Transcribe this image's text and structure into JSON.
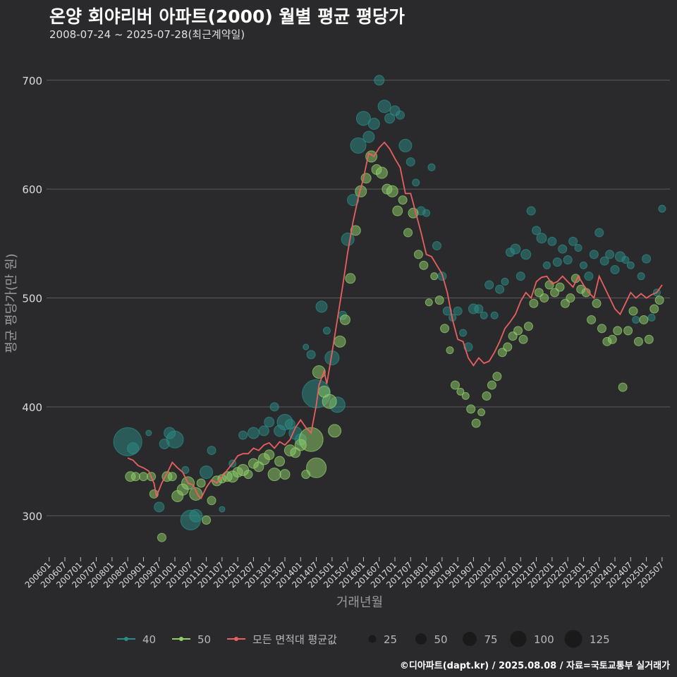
{
  "header": {
    "title": "온양 회야리버 아파트(2000) 월별 평균 평당가",
    "subtitle": "2008-07-24 ~ 2025-07-28(최근계약일)"
  },
  "footer": {
    "credit": "©디아파트(dapt.kr) / 2025.08.08 / 자료=국토교통부 실거래가"
  },
  "colors": {
    "s40": "#2a8c86",
    "s50": "#8fcf6a",
    "avg": "#e8605f",
    "grid": "#5a5a5c",
    "bg": "#2a2a2c"
  },
  "chart_data": {
    "type": "line+scatter",
    "xlabel": "거래년월",
    "ylabel": "평균 평당가(만 원)",
    "yticks": [
      300,
      400,
      500,
      600,
      700
    ],
    "ylim": [
      262,
      718
    ],
    "xlim": [
      "2005-12",
      "2025-10"
    ],
    "xticks": [
      "200601",
      "200607",
      "200701",
      "200707",
      "200801",
      "200807",
      "200901",
      "200907",
      "201001",
      "201007",
      "201101",
      "201107",
      "201201",
      "201207",
      "201301",
      "201307",
      "201401",
      "201407",
      "201501",
      "201507",
      "201601",
      "201607",
      "201701",
      "201707",
      "201801",
      "201807",
      "201901",
      "201907",
      "202001",
      "202007",
      "202101",
      "202107",
      "202201",
      "202207",
      "202301",
      "202307",
      "202401",
      "202407",
      "202501",
      "202507"
    ],
    "legend_series": [
      {
        "name": "40",
        "color": "#2a8c86"
      },
      {
        "name": "50",
        "color": "#8fcf6a"
      },
      {
        "name": "모든 면적대 평균값",
        "color": "#e8605f"
      }
    ],
    "legend_sizes": [
      25,
      50,
      75,
      100,
      125
    ],
    "average_line": [
      [
        "2008-07",
        353
      ],
      [
        "2008-09",
        351
      ],
      [
        "2008-11",
        346
      ],
      [
        "2009-01",
        344
      ],
      [
        "2009-03",
        341
      ],
      [
        "2009-05",
        330
      ],
      [
        "2009-06",
        318
      ],
      [
        "2009-08",
        330
      ],
      [
        "2009-10",
        339
      ],
      [
        "2009-12",
        349
      ],
      [
        "2010-02",
        344
      ],
      [
        "2010-04",
        340
      ],
      [
        "2010-06",
        330
      ],
      [
        "2010-08",
        328
      ],
      [
        "2010-10",
        318
      ],
      [
        "2010-11",
        316
      ],
      [
        "2011-01",
        326
      ],
      [
        "2011-03",
        333
      ],
      [
        "2011-05",
        330
      ],
      [
        "2011-07",
        336
      ],
      [
        "2011-09",
        342
      ],
      [
        "2011-11",
        348
      ],
      [
        "2012-01",
        355
      ],
      [
        "2012-03",
        357
      ],
      [
        "2012-05",
        357
      ],
      [
        "2012-07",
        362
      ],
      [
        "2012-09",
        360
      ],
      [
        "2012-11",
        365
      ],
      [
        "2013-01",
        367
      ],
      [
        "2013-03",
        362
      ],
      [
        "2013-05",
        368
      ],
      [
        "2013-07",
        365
      ],
      [
        "2013-09",
        370
      ],
      [
        "2013-11",
        381
      ],
      [
        "2014-01",
        388
      ],
      [
        "2014-03",
        381
      ],
      [
        "2014-05",
        376
      ],
      [
        "2014-07",
        402
      ],
      [
        "2014-08",
        420
      ],
      [
        "2014-10",
        433
      ],
      [
        "2014-11",
        421
      ],
      [
        "2015-01",
        450
      ],
      [
        "2015-03",
        480
      ],
      [
        "2015-05",
        510
      ],
      [
        "2015-07",
        542
      ],
      [
        "2015-09",
        570
      ],
      [
        "2015-11",
        592
      ],
      [
        "2016-01",
        610
      ],
      [
        "2016-03",
        633
      ],
      [
        "2016-05",
        630
      ],
      [
        "2016-07",
        638
      ],
      [
        "2016-09",
        643
      ],
      [
        "2016-11",
        637
      ],
      [
        "2017-01",
        628
      ],
      [
        "2017-03",
        620
      ],
      [
        "2017-05",
        596
      ],
      [
        "2017-07",
        596
      ],
      [
        "2017-09",
        578
      ],
      [
        "2017-11",
        560
      ],
      [
        "2018-01",
        540
      ],
      [
        "2018-03",
        538
      ],
      [
        "2018-05",
        530
      ],
      [
        "2018-07",
        522
      ],
      [
        "2018-09",
        505
      ],
      [
        "2018-11",
        480
      ],
      [
        "2019-01",
        462
      ],
      [
        "2019-03",
        460
      ],
      [
        "2019-05",
        445
      ],
      [
        "2019-07",
        438
      ],
      [
        "2019-09",
        445
      ],
      [
        "2019-11",
        440
      ],
      [
        "2020-01",
        442
      ],
      [
        "2020-03",
        450
      ],
      [
        "2020-05",
        460
      ],
      [
        "2020-07",
        472
      ],
      [
        "2020-09",
        478
      ],
      [
        "2020-11",
        485
      ],
      [
        "2021-01",
        497
      ],
      [
        "2021-03",
        505
      ],
      [
        "2021-05",
        500
      ],
      [
        "2021-07",
        515
      ],
      [
        "2021-09",
        519
      ],
      [
        "2021-11",
        520
      ],
      [
        "2022-01",
        513
      ],
      [
        "2022-03",
        515
      ],
      [
        "2022-05",
        520
      ],
      [
        "2022-07",
        515
      ],
      [
        "2022-09",
        510
      ],
      [
        "2022-11",
        520
      ],
      [
        "2023-01",
        512
      ],
      [
        "2023-03",
        505
      ],
      [
        "2023-05",
        500
      ],
      [
        "2023-07",
        520
      ],
      [
        "2023-09",
        510
      ],
      [
        "2023-11",
        500
      ],
      [
        "2024-01",
        490
      ],
      [
        "2024-03",
        485
      ],
      [
        "2024-05",
        495
      ],
      [
        "2024-07",
        505
      ],
      [
        "2024-09",
        500
      ],
      [
        "2024-11",
        504
      ],
      [
        "2025-01",
        500
      ],
      [
        "2025-03",
        503
      ],
      [
        "2025-05",
        505
      ],
      [
        "2025-07",
        512
      ]
    ],
    "points_40": [
      [
        "2008-07",
        368,
        20
      ],
      [
        "2008-09",
        362,
        8
      ],
      [
        "2009-03",
        376,
        4
      ],
      [
        "2009-07",
        308,
        7
      ],
      [
        "2009-09",
        366,
        7
      ],
      [
        "2009-11",
        376,
        8
      ],
      [
        "2010-01",
        370,
        12
      ],
      [
        "2010-05",
        342,
        5
      ],
      [
        "2010-07",
        296,
        14
      ],
      [
        "2010-09",
        300,
        9
      ],
      [
        "2011-01",
        340,
        9
      ],
      [
        "2011-03",
        360,
        6
      ],
      [
        "2011-07",
        306,
        4
      ],
      [
        "2011-11",
        348,
        5
      ],
      [
        "2012-03",
        374,
        6
      ],
      [
        "2012-07",
        376,
        8
      ],
      [
        "2012-11",
        378,
        7
      ],
      [
        "2013-01",
        386,
        7
      ],
      [
        "2013-03",
        400,
        6
      ],
      [
        "2013-05",
        378,
        8
      ],
      [
        "2013-07",
        386,
        11
      ],
      [
        "2013-09",
        384,
        7
      ],
      [
        "2013-11",
        376,
        9
      ],
      [
        "2014-01",
        370,
        8
      ],
      [
        "2014-03",
        455,
        4
      ],
      [
        "2014-05",
        448,
        6
      ],
      [
        "2014-07",
        412,
        20
      ],
      [
        "2014-09",
        492,
        8
      ],
      [
        "2014-11",
        470,
        5
      ],
      [
        "2015-01",
        445,
        10
      ],
      [
        "2015-03",
        402,
        11
      ],
      [
        "2015-05",
        484,
        6
      ],
      [
        "2015-07",
        554,
        9
      ],
      [
        "2015-09",
        590,
        8
      ],
      [
        "2015-11",
        640,
        11
      ],
      [
        "2016-01",
        665,
        10
      ],
      [
        "2016-03",
        648,
        8
      ],
      [
        "2016-05",
        660,
        8
      ],
      [
        "2016-07",
        700,
        7
      ],
      [
        "2016-09",
        676,
        9
      ],
      [
        "2016-11",
        665,
        7
      ],
      [
        "2017-01",
        672,
        7
      ],
      [
        "2017-03",
        668,
        6
      ],
      [
        "2017-05",
        640,
        9
      ],
      [
        "2017-07",
        625,
        6
      ],
      [
        "2017-09",
        606,
        5
      ],
      [
        "2017-11",
        580,
        6
      ],
      [
        "2018-01",
        578,
        5
      ],
      [
        "2018-03",
        620,
        5
      ],
      [
        "2018-05",
        548,
        6
      ],
      [
        "2018-07",
        520,
        6
      ],
      [
        "2018-09",
        488,
        6
      ],
      [
        "2018-11",
        482,
        5
      ],
      [
        "2019-01",
        488,
        6
      ],
      [
        "2019-03",
        468,
        5
      ],
      [
        "2019-05",
        455,
        6
      ],
      [
        "2019-07",
        490,
        7
      ],
      [
        "2019-09",
        490,
        6
      ],
      [
        "2019-11",
        484,
        5
      ],
      [
        "2020-01",
        512,
        6
      ],
      [
        "2020-03",
        484,
        5
      ],
      [
        "2020-05",
        508,
        6
      ],
      [
        "2020-07",
        515,
        5
      ],
      [
        "2020-09",
        542,
        6
      ],
      [
        "2020-11",
        545,
        7
      ],
      [
        "2021-01",
        520,
        6
      ],
      [
        "2021-03",
        540,
        7
      ],
      [
        "2021-05",
        580,
        6
      ],
      [
        "2021-07",
        562,
        6
      ],
      [
        "2021-09",
        555,
        7
      ],
      [
        "2021-11",
        530,
        5
      ],
      [
        "2022-01",
        552,
        6
      ],
      [
        "2022-03",
        533,
        6
      ],
      [
        "2022-05",
        545,
        6
      ],
      [
        "2022-07",
        535,
        6
      ],
      [
        "2022-09",
        552,
        6
      ],
      [
        "2022-11",
        546,
        5
      ],
      [
        "2023-01",
        530,
        5
      ],
      [
        "2023-03",
        520,
        6
      ],
      [
        "2023-05",
        540,
        6
      ],
      [
        "2023-07",
        560,
        6
      ],
      [
        "2023-09",
        534,
        6
      ],
      [
        "2023-11",
        540,
        6
      ],
      [
        "2024-01",
        526,
        6
      ],
      [
        "2024-03",
        538,
        7
      ],
      [
        "2024-05",
        535,
        5
      ],
      [
        "2024-07",
        530,
        5
      ],
      [
        "2024-09",
        480,
        5
      ],
      [
        "2024-11",
        520,
        5
      ],
      [
        "2025-01",
        536,
        6
      ],
      [
        "2025-03",
        482,
        5
      ],
      [
        "2025-05",
        505,
        5
      ],
      [
        "2025-07",
        582,
        5
      ]
    ],
    "points_50": [
      [
        "2008-08",
        336,
        7
      ],
      [
        "2008-10",
        336,
        6
      ],
      [
        "2009-01",
        336,
        6
      ],
      [
        "2009-04",
        336,
        6
      ],
      [
        "2009-05",
        320,
        6
      ],
      [
        "2009-08",
        280,
        6
      ],
      [
        "2009-10",
        336,
        7
      ],
      [
        "2009-12",
        336,
        6
      ],
      [
        "2010-02",
        318,
        8
      ],
      [
        "2010-04",
        324,
        8
      ],
      [
        "2010-06",
        330,
        9
      ],
      [
        "2010-09",
        320,
        9
      ],
      [
        "2010-11",
        330,
        6
      ],
      [
        "2011-01",
        296,
        6
      ],
      [
        "2011-03",
        314,
        6
      ],
      [
        "2011-05",
        332,
        7
      ],
      [
        "2011-07",
        334,
        6
      ],
      [
        "2011-09",
        336,
        7
      ],
      [
        "2011-11",
        336,
        8
      ],
      [
        "2012-01",
        340,
        7
      ],
      [
        "2012-03",
        342,
        8
      ],
      [
        "2012-05",
        338,
        6
      ],
      [
        "2012-07",
        348,
        7
      ],
      [
        "2012-09",
        345,
        7
      ],
      [
        "2012-11",
        352,
        8
      ],
      [
        "2013-01",
        356,
        7
      ],
      [
        "2013-03",
        338,
        9
      ],
      [
        "2013-05",
        350,
        7
      ],
      [
        "2013-07",
        338,
        7
      ],
      [
        "2013-09",
        360,
        8
      ],
      [
        "2013-11",
        358,
        7
      ],
      [
        "2014-01",
        365,
        8
      ],
      [
        "2014-03",
        338,
        6
      ],
      [
        "2014-05",
        370,
        17
      ],
      [
        "2014-07",
        344,
        14
      ],
      [
        "2014-08",
        432,
        9
      ],
      [
        "2014-10",
        414,
        8
      ],
      [
        "2014-12",
        405,
        10
      ],
      [
        "2015-02",
        378,
        9
      ],
      [
        "2015-04",
        460,
        8
      ],
      [
        "2015-06",
        480,
        7
      ],
      [
        "2015-08",
        518,
        7
      ],
      [
        "2015-10",
        562,
        7
      ],
      [
        "2015-12",
        598,
        8
      ],
      [
        "2016-02",
        610,
        7
      ],
      [
        "2016-04",
        630,
        8
      ],
      [
        "2016-06",
        618,
        7
      ],
      [
        "2016-08",
        615,
        8
      ],
      [
        "2016-10",
        600,
        7
      ],
      [
        "2016-12",
        598,
        8
      ],
      [
        "2017-02",
        580,
        7
      ],
      [
        "2017-04",
        590,
        6
      ],
      [
        "2017-06",
        560,
        6
      ],
      [
        "2017-08",
        578,
        7
      ],
      [
        "2017-10",
        540,
        6
      ],
      [
        "2017-12",
        530,
        6
      ],
      [
        "2018-02",
        496,
        5
      ],
      [
        "2018-04",
        520,
        5
      ],
      [
        "2018-06",
        498,
        6
      ],
      [
        "2018-08",
        472,
        6
      ],
      [
        "2018-10",
        452,
        5
      ],
      [
        "2018-12",
        420,
        6
      ],
      [
        "2019-02",
        414,
        5
      ],
      [
        "2019-04",
        410,
        5
      ],
      [
        "2019-06",
        398,
        6
      ],
      [
        "2019-08",
        385,
        6
      ],
      [
        "2019-10",
        395,
        5
      ],
      [
        "2019-12",
        410,
        6
      ],
      [
        "2020-02",
        420,
        6
      ],
      [
        "2020-04",
        428,
        6
      ],
      [
        "2020-06",
        450,
        6
      ],
      [
        "2020-08",
        455,
        6
      ],
      [
        "2020-10",
        465,
        6
      ],
      [
        "2020-12",
        470,
        6
      ],
      [
        "2021-02",
        462,
        6
      ],
      [
        "2021-04",
        474,
        6
      ],
      [
        "2021-06",
        495,
        6
      ],
      [
        "2021-08",
        505,
        6
      ],
      [
        "2021-10",
        500,
        6
      ],
      [
        "2021-12",
        512,
        6
      ],
      [
        "2022-02",
        505,
        6
      ],
      [
        "2022-04",
        510,
        6
      ],
      [
        "2022-06",
        495,
        6
      ],
      [
        "2022-08",
        500,
        6
      ],
      [
        "2022-10",
        518,
        6
      ],
      [
        "2022-12",
        508,
        6
      ],
      [
        "2023-02",
        505,
        6
      ],
      [
        "2023-04",
        480,
        6
      ],
      [
        "2023-06",
        495,
        6
      ],
      [
        "2023-08",
        472,
        6
      ],
      [
        "2023-10",
        460,
        6
      ],
      [
        "2023-12",
        462,
        6
      ],
      [
        "2024-02",
        470,
        6
      ],
      [
        "2024-04",
        418,
        6
      ],
      [
        "2024-06",
        470,
        6
      ],
      [
        "2024-08",
        488,
        6
      ],
      [
        "2024-10",
        460,
        6
      ],
      [
        "2024-12",
        480,
        6
      ],
      [
        "2025-02",
        462,
        6
      ],
      [
        "2025-04",
        490,
        6
      ],
      [
        "2025-06",
        498,
        6
      ]
    ]
  }
}
